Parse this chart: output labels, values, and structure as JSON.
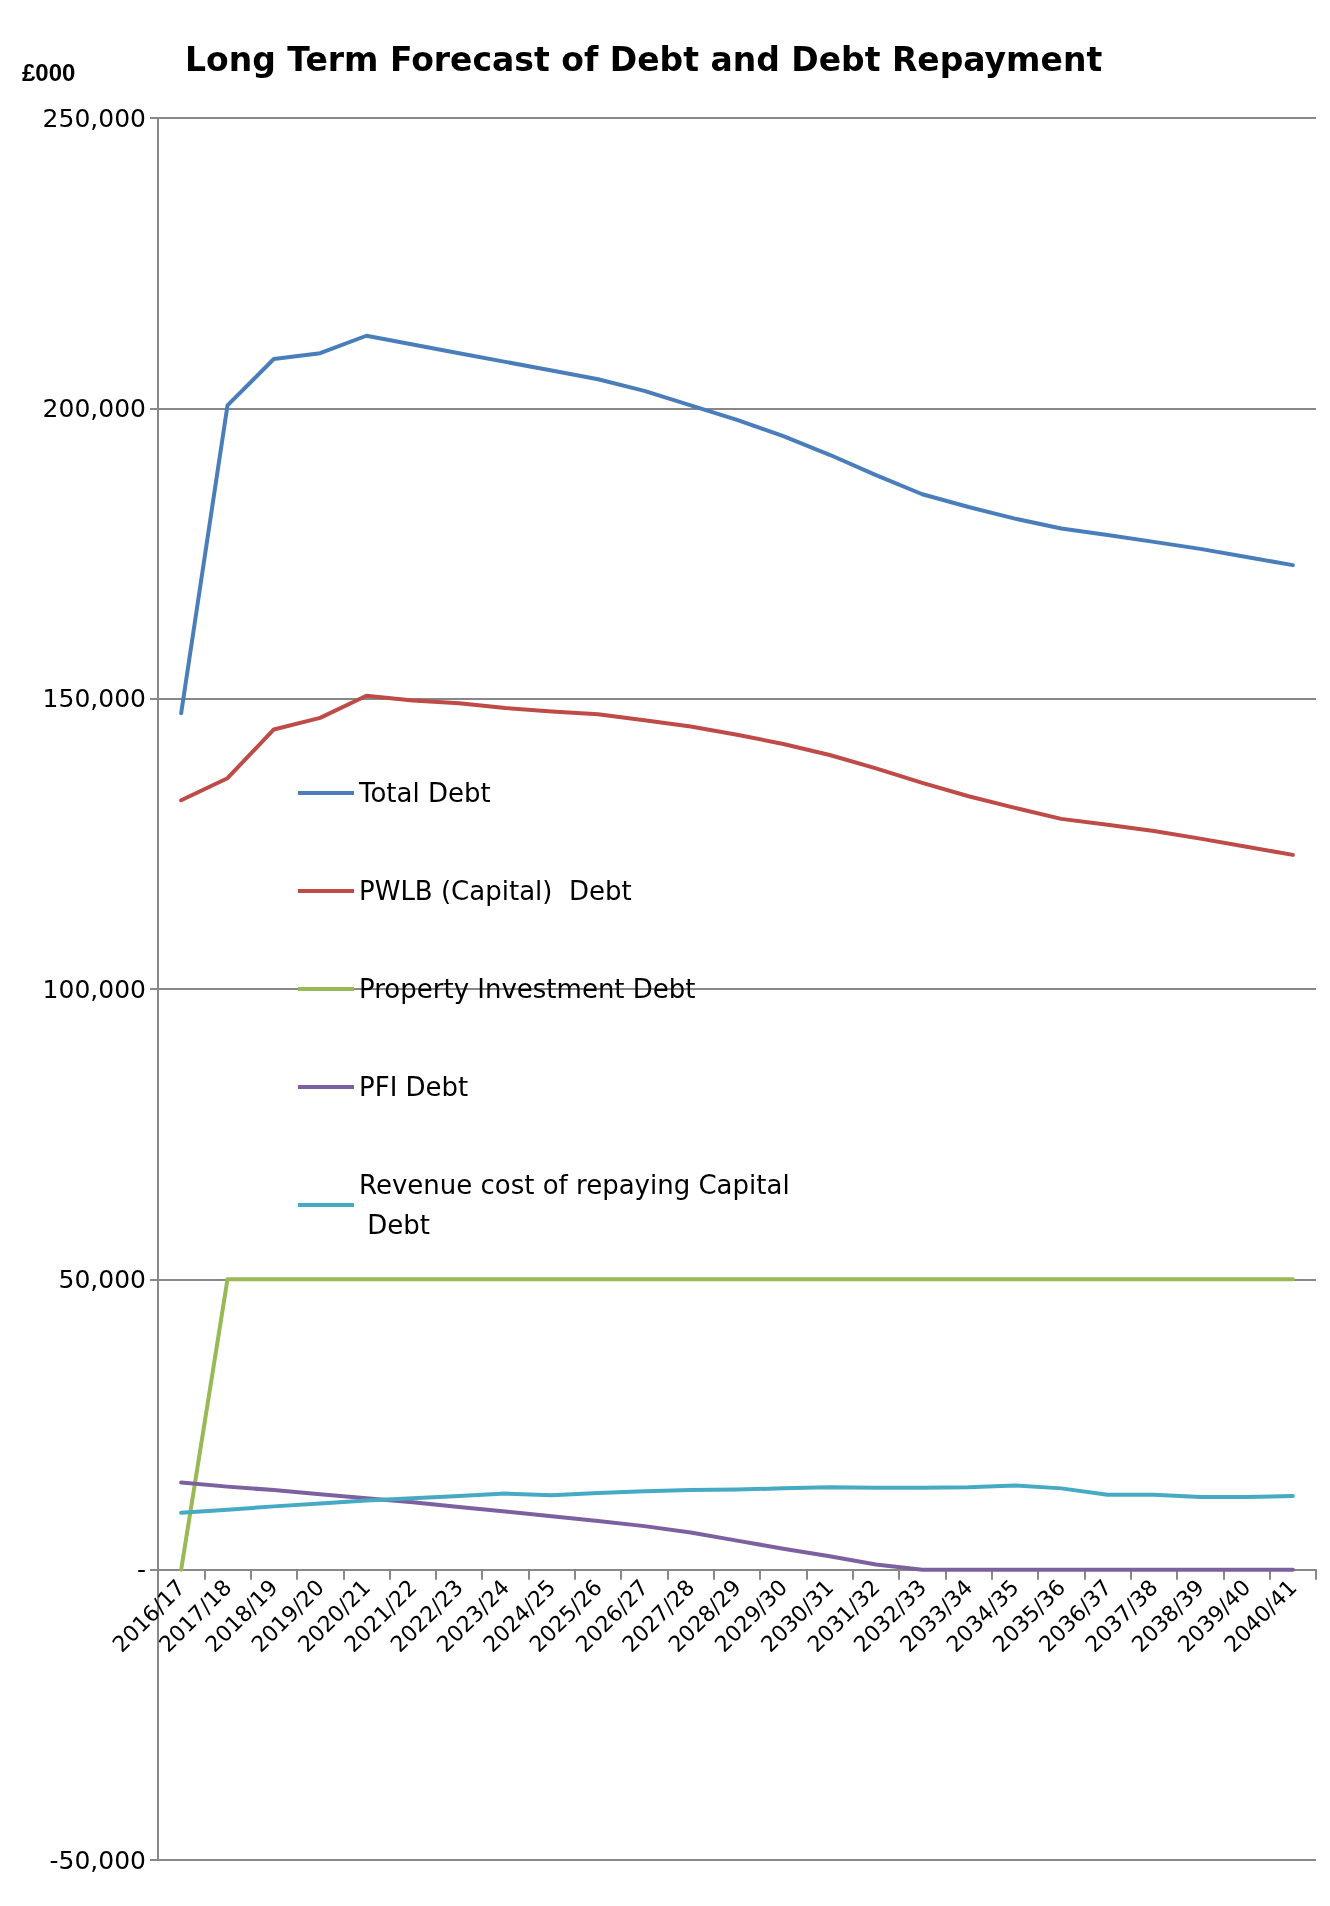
{
  "chart_data": {
    "type": "line",
    "title": "Long Term Forecast of Debt and Debt Repayment",
    "ylabel": "£000",
    "categories": [
      "2016/17",
      "2017/18",
      "2018/19",
      "2019/20",
      "2020/21",
      "2021/22",
      "2022/23",
      "2023/24",
      "2024/25",
      "2025/26",
      "2026/27",
      "2027/28",
      "2028/29",
      "2029/30",
      "2030/31",
      "2031/32",
      "2032/33",
      "2033/34",
      "2034/35",
      "2035/36",
      "2036/37",
      "2037/38",
      "2038/39",
      "2039/40",
      "2040/41"
    ],
    "series": [
      {
        "name": "Total Debt",
        "color": "#4a7ebb",
        "values": [
          147500,
          200500,
          208500,
          209500,
          212500,
          211000,
          209500,
          208000,
          206500,
          205000,
          203000,
          200500,
          198000,
          195200,
          192000,
          188500,
          185200,
          183000,
          181000,
          179300,
          178200,
          177000,
          175800,
          174400,
          173000
        ]
      },
      {
        "name": "PWLB (Capital)  Debt",
        "color": "#be4b48",
        "values": [
          132500,
          136300,
          144700,
          146700,
          150500,
          149700,
          149200,
          148400,
          147800,
          147300,
          146300,
          145200,
          143800,
          142200,
          140300,
          138000,
          135500,
          133200,
          131200,
          129300,
          128300,
          127200,
          125900,
          124500,
          123100
        ]
      },
      {
        "name": "Property Investment Debt",
        "color": "#98b954",
        "values": [
          0,
          50000,
          50000,
          50000,
          50000,
          50000,
          50000,
          50000,
          50000,
          50000,
          50000,
          50000,
          50000,
          50000,
          50000,
          50000,
          50000,
          50000,
          50000,
          50000,
          50000,
          50000,
          50000,
          50000,
          50000
        ]
      },
      {
        "name": "PFI Debt",
        "color": "#7d60a0",
        "values": [
          15000,
          14300,
          13700,
          13000,
          12300,
          11600,
          10800,
          10000,
          9200,
          8400,
          7500,
          6400,
          5000,
          3600,
          2300,
          900,
          0,
          0,
          0,
          0,
          0,
          0,
          0,
          0,
          0
        ]
      },
      {
        "name": "Revenue cost of repaying Capital Debt",
        "color": "#46aac5",
        "values": [
          9800,
          10300,
          10900,
          11400,
          11900,
          12300,
          12700,
          13100,
          12800,
          13200,
          13500,
          13700,
          13800,
          14000,
          14200,
          14100,
          14100,
          14200,
          14500,
          14000,
          12900,
          12900,
          12500,
          12500,
          12700
        ]
      }
    ],
    "ylim": [
      -50000,
      250000
    ],
    "yticks": [
      {
        "value": -50000,
        "label": "-50,000"
      },
      {
        "value": 0,
        "label": "-"
      },
      {
        "value": 50000,
        "label": "50,000"
      },
      {
        "value": 100000,
        "label": "100,000"
      },
      {
        "value": 150000,
        "label": "150,000"
      },
      {
        "value": 200000,
        "label": "200,000"
      },
      {
        "value": 250000,
        "label": "250,000"
      }
    ],
    "grid": "y",
    "legend": "left",
    "marker": "none",
    "line_style": "solid"
  }
}
